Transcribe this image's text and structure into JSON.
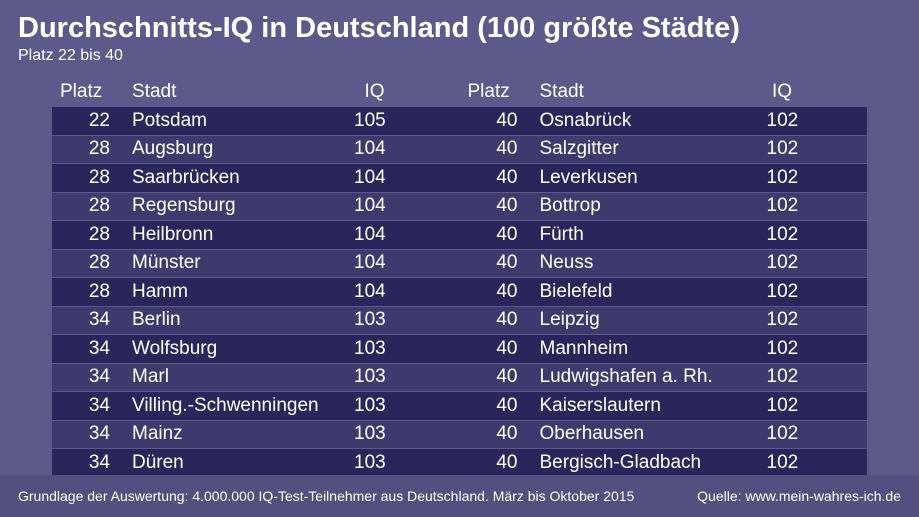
{
  "title": "Durchschnitts-IQ in Deutschland (100 größte Städte)",
  "subtitle": "Platz 22 bis 40",
  "headers": {
    "platz": "Platz",
    "stadt": "Stadt",
    "iq": "IQ"
  },
  "colors": {
    "background": "#5c5a8a",
    "row_dark": "#29265b",
    "row_mid": "#3d3a6e",
    "footer_bg": "#51507e",
    "text": "#ffffff"
  },
  "typography": {
    "title_fontsize": 29,
    "title_weight": "bold",
    "subtitle_fontsize": 16,
    "header_fontsize": 19,
    "row_fontsize": 19,
    "footer_fontsize": 14,
    "font_family": "Arial"
  },
  "layout": {
    "row_height": 27.5,
    "row_gap": 1,
    "col_platz_width": 66,
    "col_stadt_width": 230,
    "col_iq_width": 70
  },
  "left": [
    {
      "platz": 22,
      "stadt": "Potsdam",
      "iq": 105
    },
    {
      "platz": 28,
      "stadt": "Augsburg",
      "iq": 104
    },
    {
      "platz": 28,
      "stadt": "Saarbrücken",
      "iq": 104
    },
    {
      "platz": 28,
      "stadt": "Regensburg",
      "iq": 104
    },
    {
      "platz": 28,
      "stadt": "Heilbronn",
      "iq": 104
    },
    {
      "platz": 28,
      "stadt": "Münster",
      "iq": 104
    },
    {
      "platz": 28,
      "stadt": "Hamm",
      "iq": 104
    },
    {
      "platz": 34,
      "stadt": "Berlin",
      "iq": 103
    },
    {
      "platz": 34,
      "stadt": "Wolfsburg",
      "iq": 103
    },
    {
      "platz": 34,
      "stadt": "Marl",
      "iq": 103
    },
    {
      "platz": 34,
      "stadt": "Villing.-Schwenningen",
      "iq": 103
    },
    {
      "platz": 34,
      "stadt": "Mainz",
      "iq": 103
    },
    {
      "platz": 34,
      "stadt": "Düren",
      "iq": 103
    }
  ],
  "right": [
    {
      "platz": 40,
      "stadt": "Osnabrück",
      "iq": 102
    },
    {
      "platz": 40,
      "stadt": "Salzgitter",
      "iq": 102
    },
    {
      "platz": 40,
      "stadt": "Leverkusen",
      "iq": 102
    },
    {
      "platz": 40,
      "stadt": "Bottrop",
      "iq": 102
    },
    {
      "platz": 40,
      "stadt": "Fürth",
      "iq": 102
    },
    {
      "platz": 40,
      "stadt": "Neuss",
      "iq": 102
    },
    {
      "platz": 40,
      "stadt": "Bielefeld",
      "iq": 102
    },
    {
      "platz": 40,
      "stadt": "Leipzig",
      "iq": 102
    },
    {
      "platz": 40,
      "stadt": "Mannheim",
      "iq": 102
    },
    {
      "platz": 40,
      "stadt": "Ludwigshafen a. Rh.",
      "iq": 102
    },
    {
      "platz": 40,
      "stadt": "Kaiserslautern",
      "iq": 102
    },
    {
      "platz": 40,
      "stadt": "Oberhausen",
      "iq": 102
    },
    {
      "platz": 40,
      "stadt": "Bergisch-Gladbach",
      "iq": 102
    }
  ],
  "footer_left": "Grundlage der Auswertung: 4.000.000 IQ-Test-Teilnehmer aus Deutschland. März bis Oktober 2015",
  "footer_right": "Quelle: www.mein-wahres-ich.de"
}
